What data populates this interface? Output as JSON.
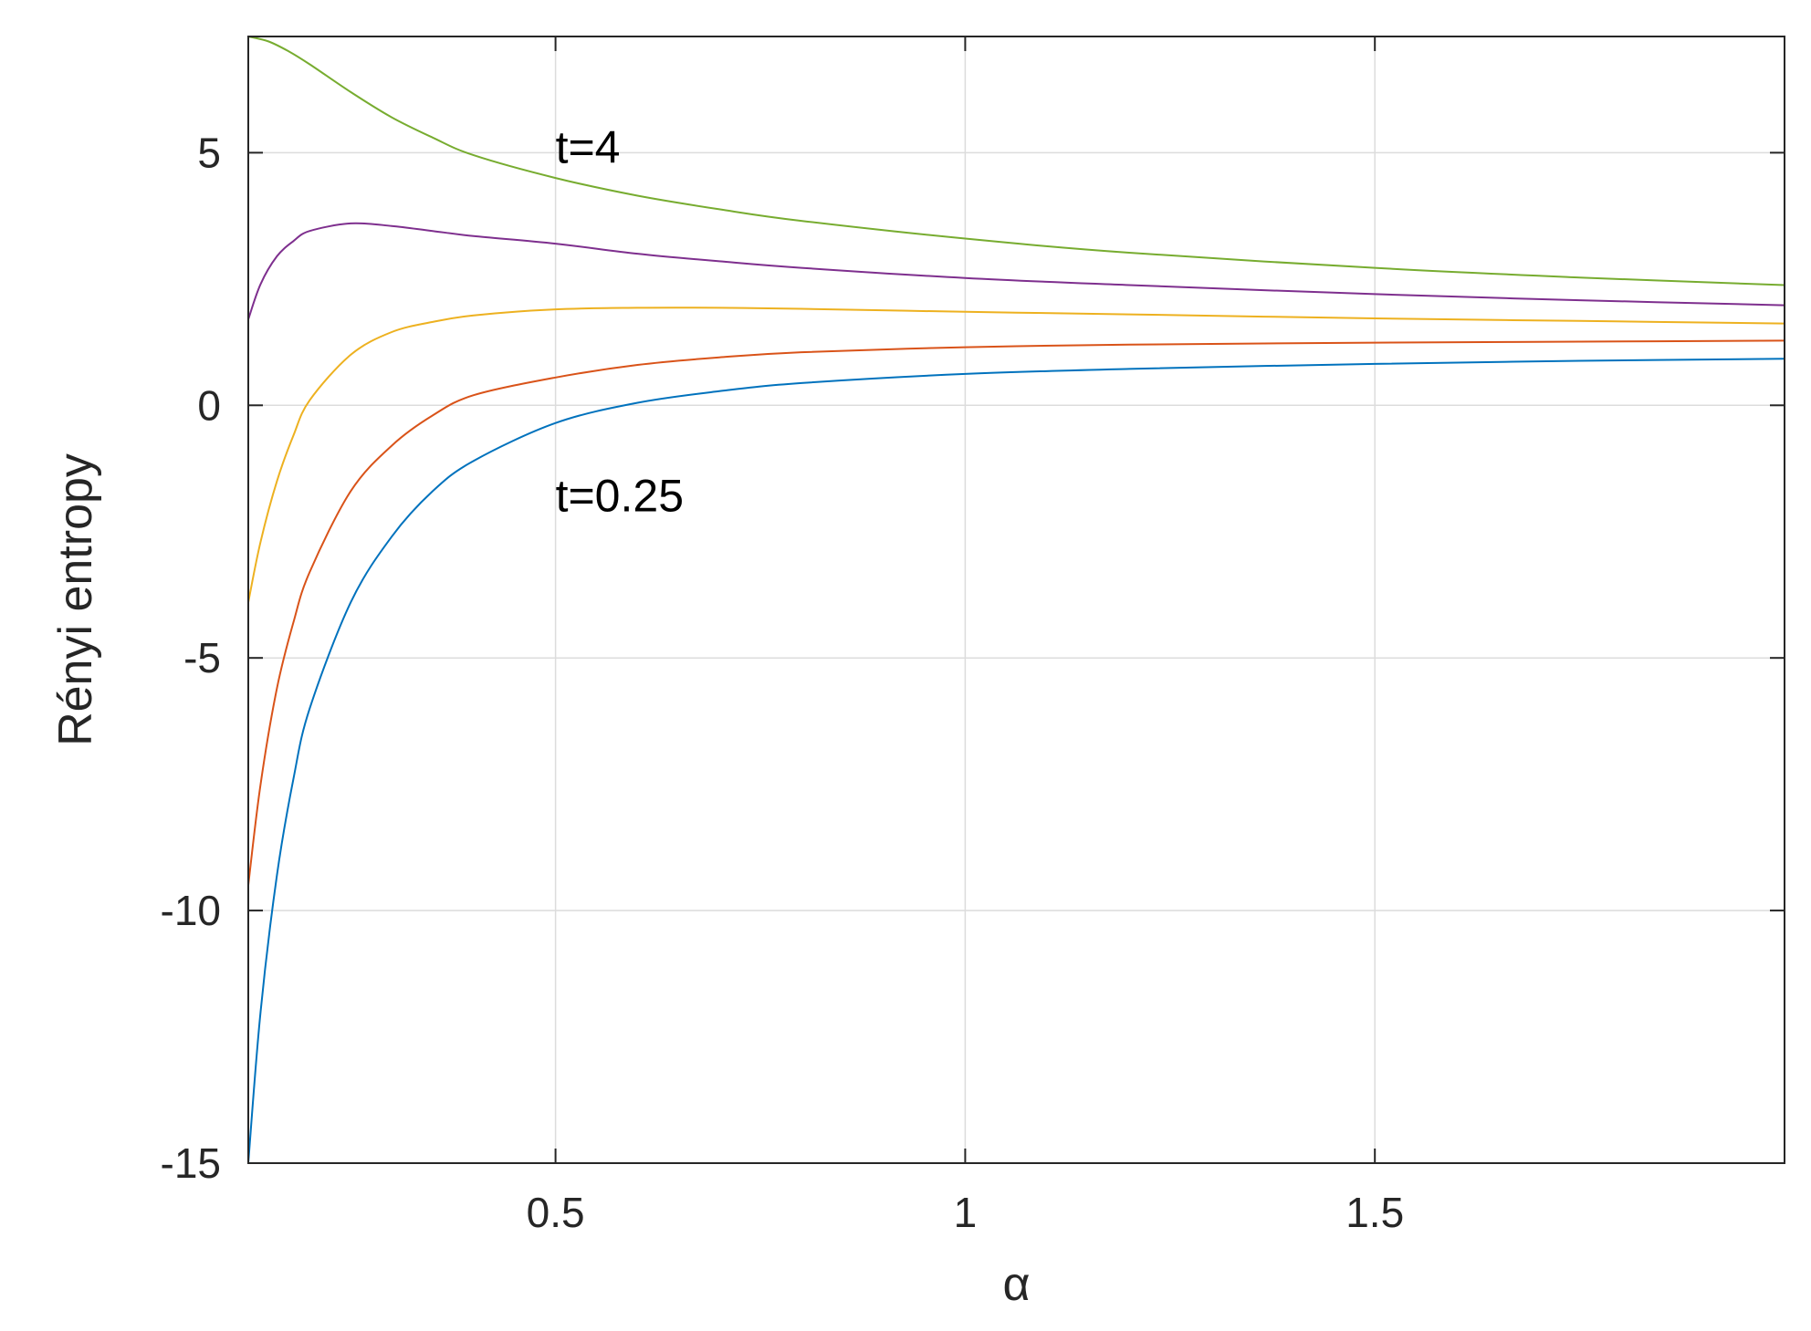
{
  "chart_data": {
    "type": "line",
    "title": "",
    "xlabel": "α",
    "ylabel": "Rényi entropy",
    "xlim": [
      0.125,
      2.0
    ],
    "ylim": [
      -15,
      7.3
    ],
    "xticks": [
      0.5,
      1,
      1.5
    ],
    "xtick_labels": [
      "0.5",
      "1",
      "1.5"
    ],
    "yticks": [
      -15,
      -10,
      -5,
      0,
      5
    ],
    "ytick_labels": [
      "-15",
      "-10",
      "-5",
      "0",
      "5"
    ],
    "grid": true,
    "legend": "none",
    "annotations": [
      {
        "text": "t=4",
        "x": 0.5,
        "y": 4.8
      },
      {
        "text": "t=0.25",
        "x": 0.5,
        "y": -2.1
      }
    ],
    "series": [
      {
        "color": "#0072BD",
        "x": [
          0.125,
          0.14,
          0.16,
          0.18,
          0.2,
          0.25,
          0.3,
          0.35,
          0.4,
          0.5,
          0.6,
          0.7,
          0.8,
          1.0,
          1.2,
          1.5,
          1.75,
          2.0
        ],
        "y": [
          -15.0,
          -12.0,
          -9.3,
          -7.4,
          -6.0,
          -3.9,
          -2.6,
          -1.7,
          -1.1,
          -0.35,
          0.05,
          0.28,
          0.44,
          0.62,
          0.72,
          0.82,
          0.88,
          0.92
        ]
      },
      {
        "color": "#D95319",
        "x": [
          0.125,
          0.14,
          0.16,
          0.18,
          0.2,
          0.25,
          0.3,
          0.35,
          0.4,
          0.5,
          0.6,
          0.7,
          0.8,
          1.0,
          1.2,
          1.5,
          1.75,
          2.0
        ],
        "y": [
          -9.5,
          -7.5,
          -5.6,
          -4.3,
          -3.3,
          -1.7,
          -0.8,
          -0.2,
          0.2,
          0.55,
          0.8,
          0.95,
          1.05,
          1.15,
          1.2,
          1.24,
          1.26,
          1.28
        ]
      },
      {
        "color": "#EDB120",
        "x": [
          0.125,
          0.14,
          0.16,
          0.18,
          0.2,
          0.25,
          0.3,
          0.35,
          0.4,
          0.5,
          0.6,
          0.7,
          0.8,
          1.0,
          1.2,
          1.5,
          1.75,
          2.0
        ],
        "y": [
          -3.9,
          -2.7,
          -1.5,
          -0.6,
          0.1,
          1.0,
          1.45,
          1.65,
          1.78,
          1.9,
          1.93,
          1.93,
          1.91,
          1.85,
          1.8,
          1.72,
          1.67,
          1.62
        ]
      },
      {
        "color": "#7E2F8E",
        "x": [
          0.125,
          0.14,
          0.16,
          0.18,
          0.2,
          0.25,
          0.3,
          0.35,
          0.4,
          0.5,
          0.6,
          0.7,
          0.8,
          1.0,
          1.2,
          1.5,
          1.75,
          2.0
        ],
        "y": [
          1.7,
          2.4,
          2.95,
          3.25,
          3.45,
          3.6,
          3.55,
          3.45,
          3.35,
          3.2,
          3.0,
          2.85,
          2.72,
          2.52,
          2.38,
          2.2,
          2.08,
          1.98
        ]
      },
      {
        "color": "#77AC30",
        "x": [
          0.125,
          0.15,
          0.175,
          0.2,
          0.25,
          0.3,
          0.35,
          0.4,
          0.5,
          0.6,
          0.7,
          0.8,
          1.0,
          1.2,
          1.5,
          1.75,
          2.0
        ],
        "y": [
          7.3,
          7.2,
          7.0,
          6.75,
          6.2,
          5.7,
          5.3,
          4.95,
          4.5,
          4.15,
          3.88,
          3.65,
          3.3,
          3.02,
          2.72,
          2.53,
          2.38
        ]
      }
    ]
  }
}
